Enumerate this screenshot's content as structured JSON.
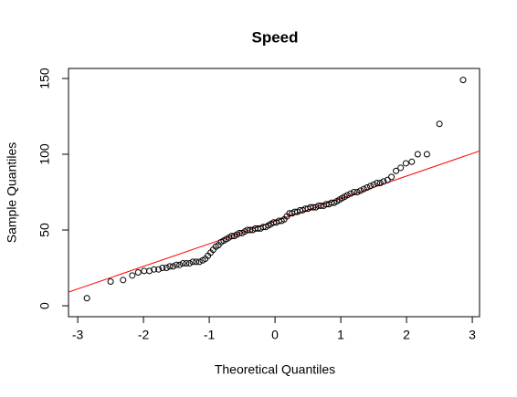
{
  "chart_data": {
    "type": "scatter",
    "title": "Speed",
    "x_label": "Theoretical Quantiles",
    "y_label": "Sample Quantiles",
    "xlim": [
      -3.14,
      3.11
    ],
    "ylim": [
      -7.2,
      156.6
    ],
    "xticks": [
      -3,
      -2,
      -1,
      0,
      1,
      2,
      3
    ],
    "yticks": [
      0,
      50,
      100,
      150
    ],
    "point_color": "#000000",
    "reference_line": {
      "intercept": 55.8,
      "slope": 14.9,
      "color": "#ff0000"
    },
    "x": [
      -2.86,
      -2.5,
      -2.31,
      -2.17,
      -2.08,
      -1.99,
      -1.91,
      -1.84,
      -1.77,
      -1.71,
      -1.65,
      -1.6,
      -1.55,
      -1.5,
      -1.45,
      -1.4,
      -1.35,
      -1.3,
      -1.25,
      -1.2,
      -1.15,
      -1.1,
      -1.06,
      -1.02,
      -0.98,
      -0.94,
      -0.9,
      -0.86,
      -0.82,
      -0.78,
      -0.74,
      -0.7,
      -0.66,
      -0.62,
      -0.58,
      -0.54,
      -0.5,
      -0.46,
      -0.42,
      -0.38,
      -0.34,
      -0.3,
      -0.26,
      -0.22,
      -0.18,
      -0.14,
      -0.1,
      -0.06,
      -0.02,
      0.02,
      0.06,
      0.1,
      0.14,
      0.18,
      0.22,
      0.26,
      0.3,
      0.34,
      0.38,
      0.42,
      0.46,
      0.5,
      0.54,
      0.58,
      0.62,
      0.66,
      0.7,
      0.74,
      0.78,
      0.82,
      0.86,
      0.9,
      0.94,
      0.98,
      1.02,
      1.06,
      1.1,
      1.15,
      1.2,
      1.25,
      1.3,
      1.35,
      1.4,
      1.45,
      1.5,
      1.55,
      1.6,
      1.65,
      1.71,
      1.77,
      1.84,
      1.91,
      1.99,
      2.08,
      2.17,
      2.31,
      2.5,
      2.86
    ],
    "values": [
      5,
      16,
      17,
      20,
      22,
      23,
      23,
      24,
      24,
      25,
      25,
      26,
      26,
      27,
      27,
      28,
      28,
      28,
      29,
      29,
      29,
      30,
      31,
      33,
      35,
      37,
      39,
      40,
      42,
      43,
      44,
      45,
      46,
      46,
      47,
      48,
      48,
      49,
      50,
      50,
      50,
      51,
      51,
      51,
      52,
      52,
      53,
      54,
      55,
      55,
      56,
      56,
      57,
      59,
      61,
      61,
      62,
      62,
      63,
      63,
      64,
      64,
      65,
      65,
      65,
      66,
      66,
      66,
      67,
      67,
      68,
      68,
      69,
      70,
      71,
      72,
      73,
      74,
      75,
      75,
      76,
      77,
      78,
      79,
      80,
      81,
      81,
      82,
      83,
      85,
      89,
      91,
      94,
      95,
      100,
      100,
      120,
      149
    ]
  }
}
